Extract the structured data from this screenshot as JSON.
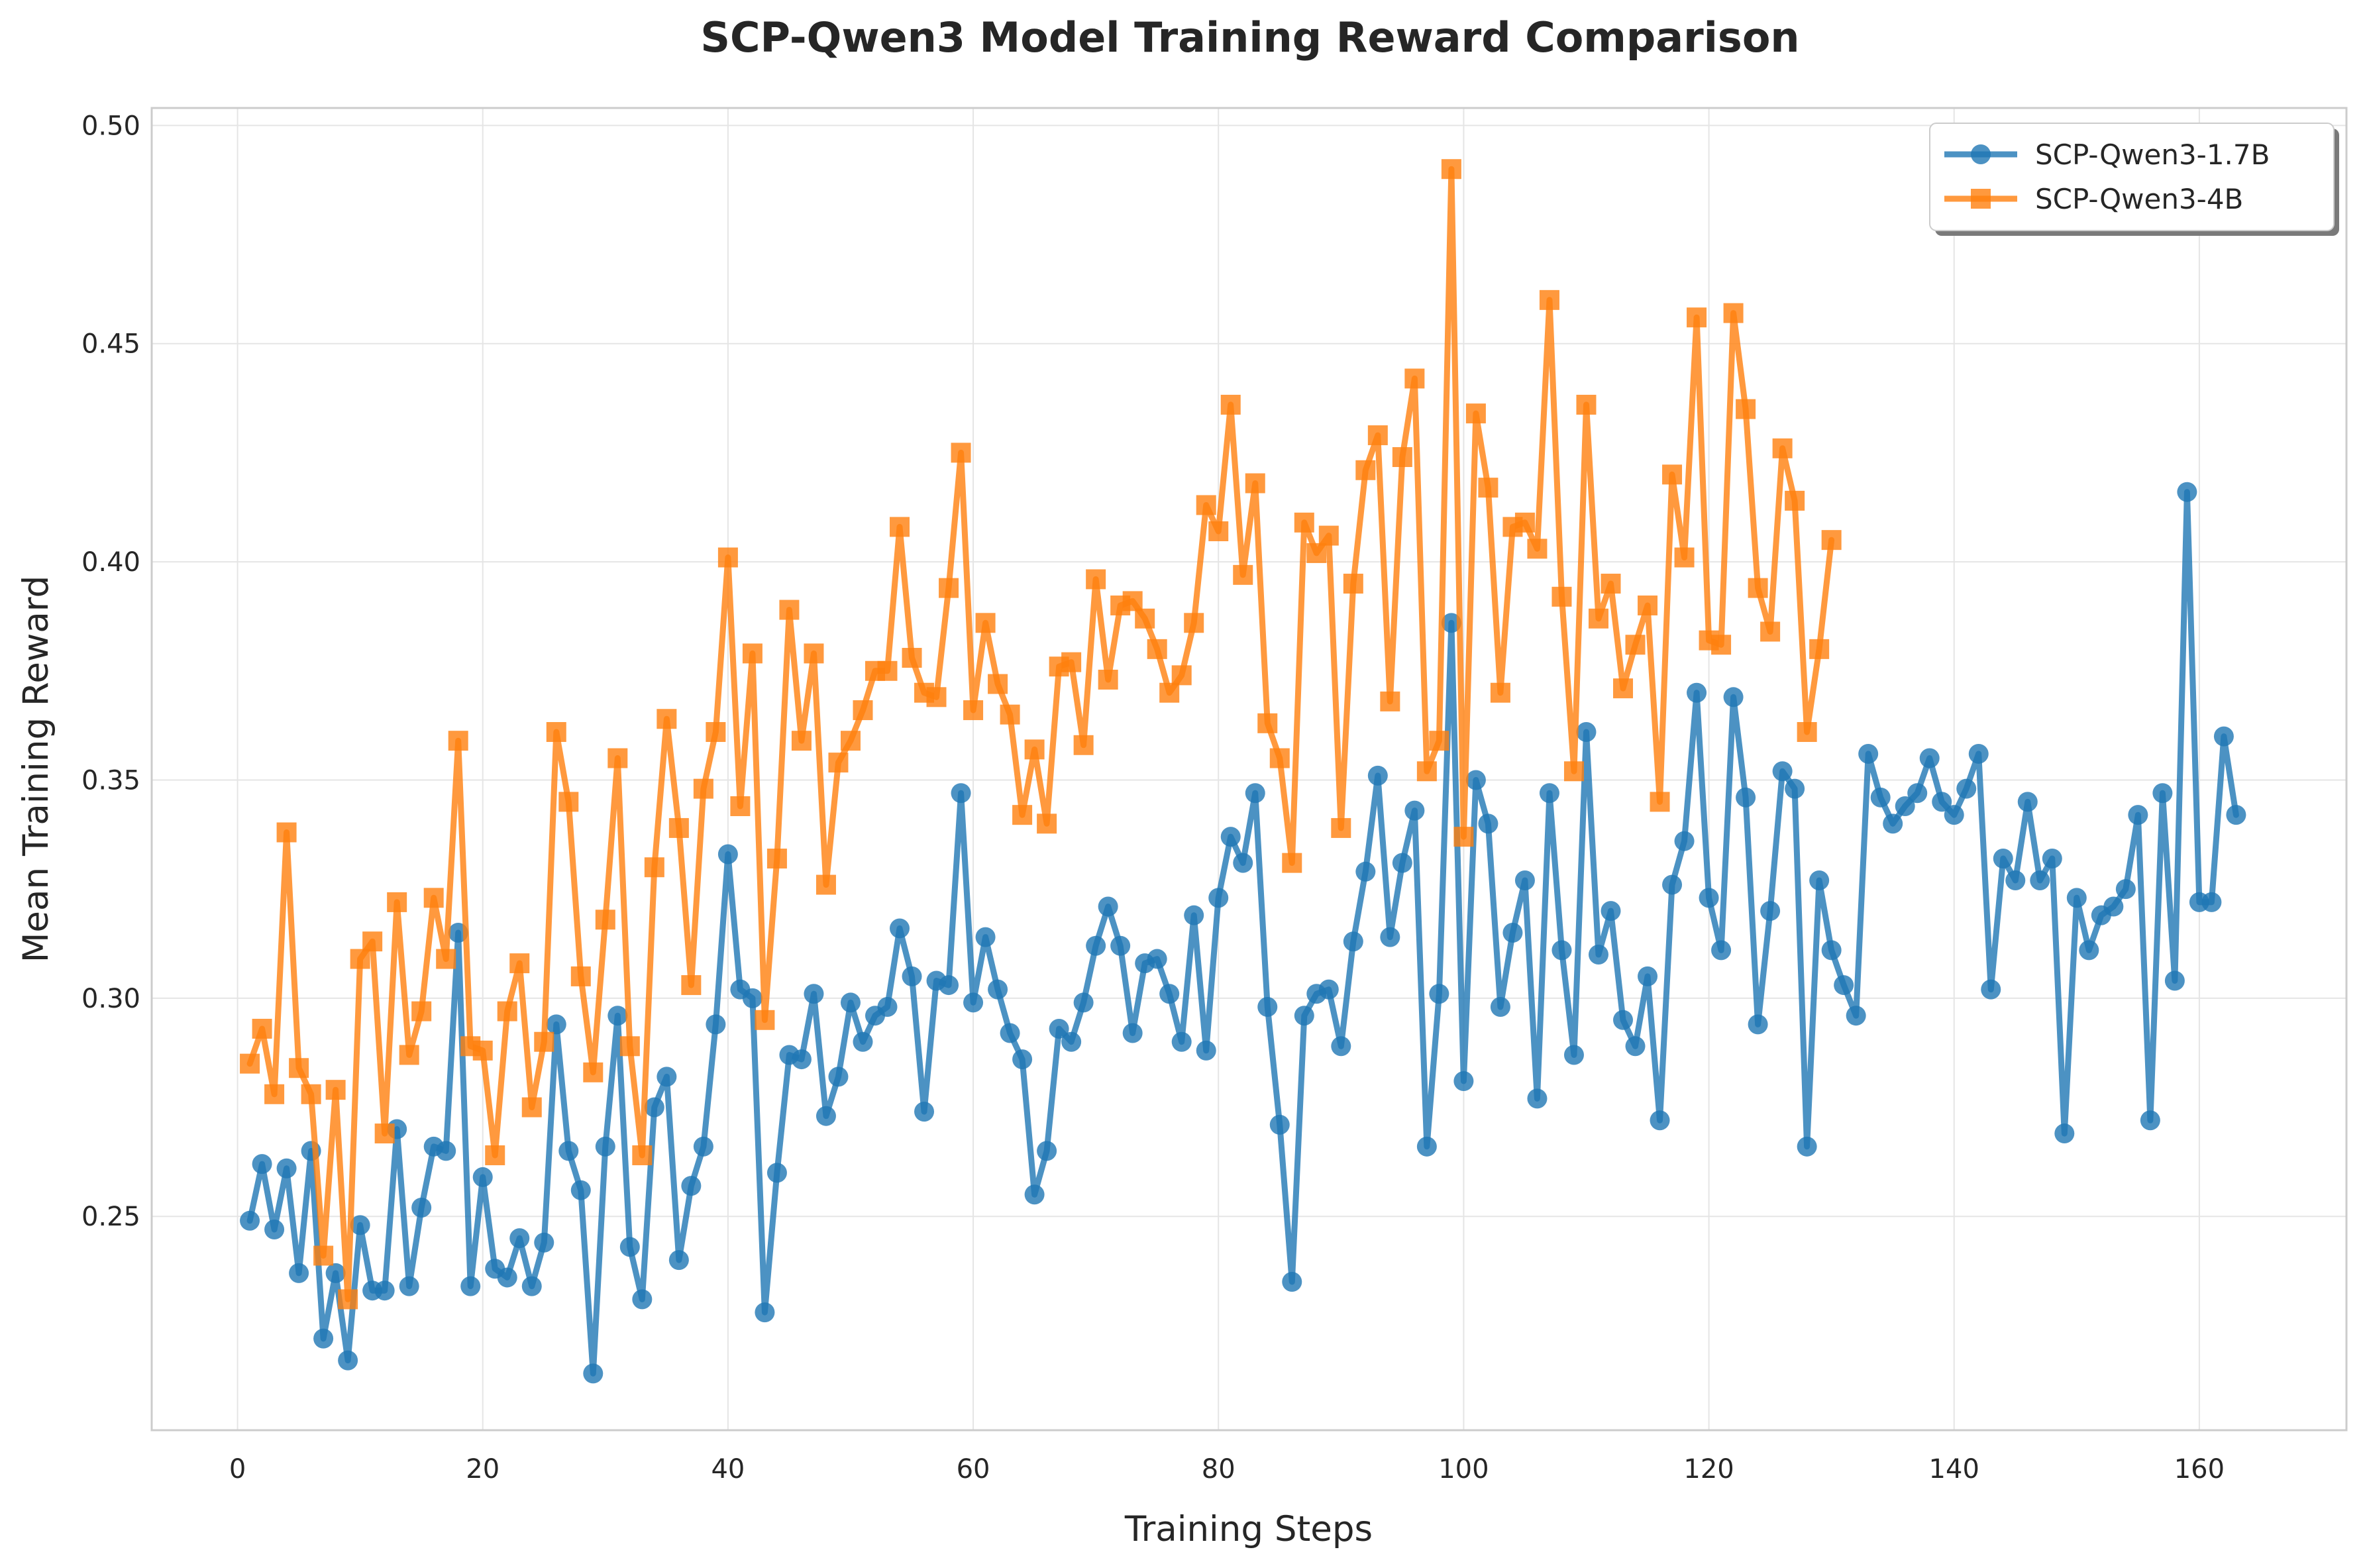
{
  "chart_data": {
    "type": "line",
    "title": "SCP-Qwen3 Model Training Reward Comparison",
    "xlabel": "Training Steps",
    "ylabel": "Mean Training Reward",
    "xlim": [
      -7,
      172
    ],
    "ylim": [
      0.201,
      0.504
    ],
    "xticks": [
      0,
      20,
      40,
      60,
      80,
      100,
      120,
      140,
      160
    ],
    "yticks": [
      0.25,
      0.3,
      0.35,
      0.4,
      0.45,
      0.5
    ],
    "ytick_labels": [
      "0.25",
      "0.30",
      "0.35",
      "0.40",
      "0.45",
      "0.50"
    ],
    "grid": true,
    "legend_position": "upper right",
    "series": [
      {
        "name": "SCP-Qwen3-1.7B",
        "color": "#1f77b4",
        "marker": "circle",
        "x_start": 1,
        "values": [
          0.249,
          0.262,
          0.247,
          0.261,
          0.237,
          0.265,
          0.222,
          0.237,
          0.217,
          0.248,
          0.233,
          0.233,
          0.27,
          0.234,
          0.252,
          0.266,
          0.265,
          0.315,
          0.234,
          0.259,
          0.238,
          0.236,
          0.245,
          0.234,
          0.244,
          0.294,
          0.265,
          0.256,
          0.214,
          0.266,
          0.296,
          0.243,
          0.231,
          0.275,
          0.282,
          0.24,
          0.257,
          0.266,
          0.294,
          0.333,
          0.302,
          0.3,
          0.228,
          0.26,
          0.287,
          0.286,
          0.301,
          0.273,
          0.282,
          0.299,
          0.29,
          0.296,
          0.298,
          0.316,
          0.305,
          0.274,
          0.304,
          0.303,
          0.347,
          0.299,
          0.314,
          0.302,
          0.292,
          0.286,
          0.255,
          0.265,
          0.293,
          0.29,
          0.299,
          0.312,
          0.321,
          0.312,
          0.292,
          0.308,
          0.309,
          0.301,
          0.29,
          0.319,
          0.288,
          0.323,
          0.337,
          0.331,
          0.347,
          0.298,
          0.271,
          0.235,
          0.296,
          0.301,
          0.302,
          0.289,
          0.313,
          0.329,
          0.351,
          0.314,
          0.331,
          0.343,
          0.266,
          0.301,
          0.386,
          0.281,
          0.35,
          0.34,
          0.298,
          0.315,
          0.327,
          0.277,
          0.347,
          0.311,
          0.287,
          0.361,
          0.31,
          0.32,
          0.295,
          0.289,
          0.305,
          0.272,
          0.326,
          0.336,
          0.37,
          0.323,
          0.311,
          0.369,
          0.346,
          0.294,
          0.32,
          0.352,
          0.348,
          0.266,
          0.327,
          0.311,
          0.303,
          0.296,
          0.356,
          0.346,
          0.34,
          0.344,
          0.347,
          0.355,
          0.345,
          0.342,
          0.348,
          0.356,
          0.302,
          0.332,
          0.327,
          0.345,
          0.327,
          0.332,
          0.269,
          0.323,
          0.311,
          0.319,
          0.321,
          0.325,
          0.342,
          0.272,
          0.347,
          0.304,
          0.416,
          0.322,
          0.322,
          0.36,
          0.342
        ]
      },
      {
        "name": "SCP-Qwen3-4B",
        "color": "#ff7f0e",
        "marker": "square",
        "x_start": 1,
        "values": [
          0.285,
          0.293,
          0.278,
          0.338,
          0.284,
          0.278,
          0.241,
          0.279,
          0.231,
          0.309,
          0.313,
          0.269,
          0.322,
          0.287,
          0.297,
          0.323,
          0.309,
          0.359,
          0.289,
          0.288,
          0.264,
          0.297,
          0.308,
          0.275,
          0.29,
          0.361,
          0.345,
          0.305,
          0.283,
          0.318,
          0.355,
          0.289,
          0.264,
          0.33,
          0.364,
          0.339,
          0.303,
          0.348,
          0.361,
          0.401,
          0.344,
          0.379,
          0.295,
          0.332,
          0.389,
          0.359,
          0.379,
          0.326,
          0.354,
          0.359,
          0.366,
          0.375,
          0.375,
          0.408,
          0.378,
          0.37,
          0.369,
          0.394,
          0.425,
          0.366,
          0.386,
          0.372,
          0.365,
          0.342,
          0.357,
          0.34,
          0.376,
          0.377,
          0.358,
          0.396,
          0.373,
          0.39,
          0.391,
          0.387,
          0.38,
          0.37,
          0.374,
          0.386,
          0.413,
          0.407,
          0.436,
          0.397,
          0.418,
          0.363,
          0.355,
          0.331,
          0.409,
          0.402,
          0.406,
          0.339,
          0.395,
          0.421,
          0.429,
          0.368,
          0.424,
          0.442,
          0.352,
          0.359,
          0.49,
          0.337,
          0.434,
          0.417,
          0.37,
          0.408,
          0.409,
          0.403,
          0.46,
          0.392,
          0.352,
          0.436,
          0.387,
          0.395,
          0.371,
          0.381,
          0.39,
          0.345,
          0.42,
          0.401,
          0.456,
          0.382,
          0.381,
          0.457,
          0.435,
          0.394,
          0.384,
          0.426,
          0.414,
          0.361,
          0.38,
          0.405
        ]
      }
    ]
  }
}
